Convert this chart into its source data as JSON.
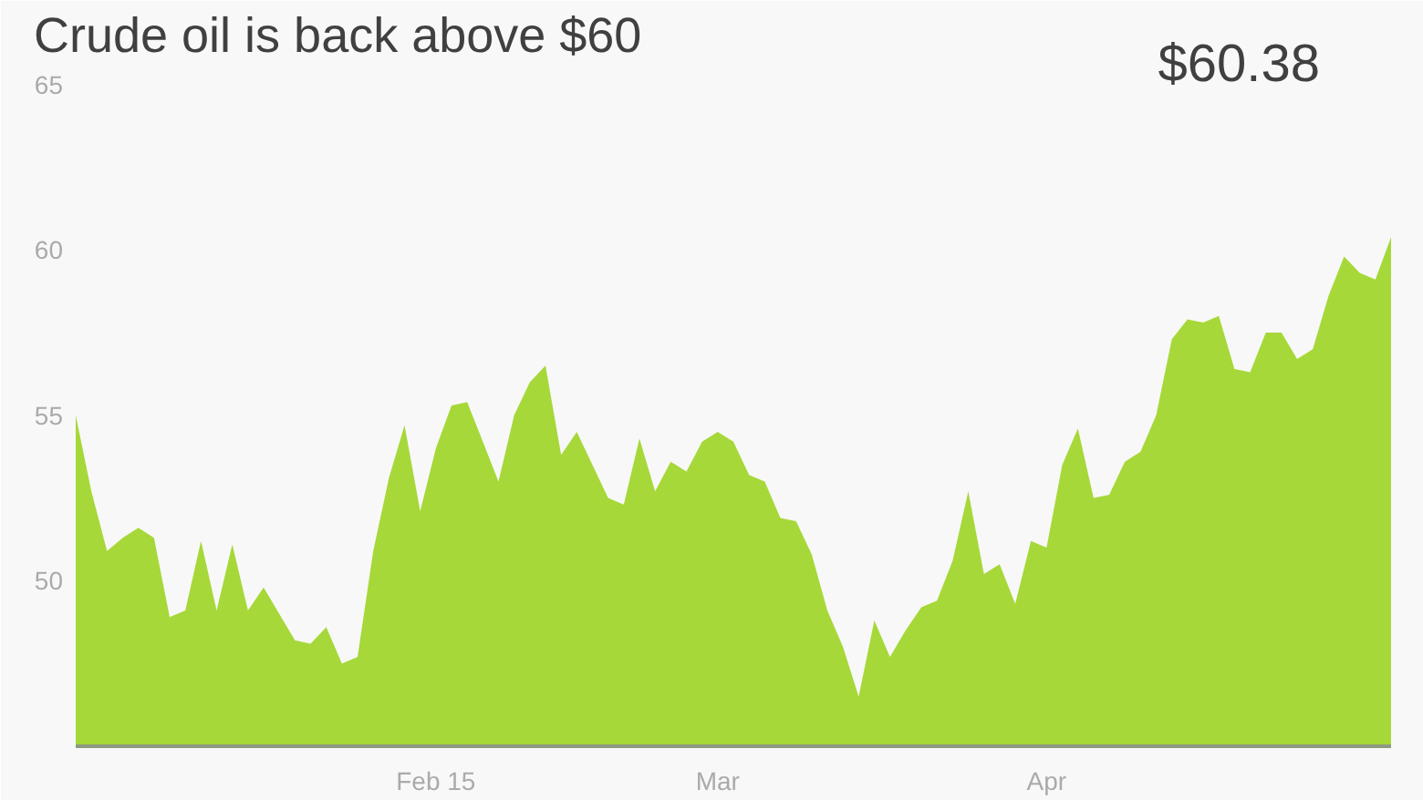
{
  "chart_data": {
    "type": "area",
    "title": "Crude oil is back above $60",
    "annotations": [
      "$60.38"
    ],
    "categories": [
      null,
      null,
      null,
      null,
      null,
      null,
      null,
      null,
      null,
      null,
      null,
      null,
      null,
      null,
      null,
      null,
      null,
      null,
      null,
      null,
      null,
      null,
      null,
      "Feb 15",
      null,
      null,
      null,
      null,
      null,
      null,
      null,
      null,
      null,
      null,
      null,
      null,
      null,
      null,
      null,
      null,
      null,
      "Mar",
      null,
      null,
      null,
      null,
      null,
      null,
      null,
      null,
      null,
      null,
      null,
      null,
      null,
      null,
      null,
      null,
      null,
      null,
      null,
      null,
      "Apr",
      null,
      null,
      null,
      null,
      null,
      null,
      null,
      null,
      null,
      null,
      null,
      null,
      null,
      null,
      null,
      null,
      null,
      null,
      null,
      null,
      null,
      null
    ],
    "series": [
      {
        "color": "#a6d839",
        "values": [
          55.0,
          52.7,
          50.9,
          51.3,
          51.6,
          51.3,
          48.9,
          49.1,
          51.2,
          49.1,
          51.1,
          49.1,
          49.8,
          49.0,
          48.2,
          48.1,
          48.6,
          47.5,
          47.7,
          50.9,
          53.1,
          54.7,
          52.1,
          54.0,
          55.3,
          55.4,
          54.2,
          53.0,
          55.0,
          56.0,
          56.5,
          53.8,
          54.5,
          53.5,
          52.5,
          52.3,
          54.3,
          52.7,
          53.6,
          53.3,
          54.2,
          54.5,
          54.2,
          53.2,
          53.0,
          51.9,
          51.8,
          50.8,
          49.1,
          48.0,
          46.5,
          48.8,
          47.7,
          48.5,
          49.2,
          49.4,
          50.6,
          52.7,
          50.2,
          50.5,
          49.3,
          51.2,
          51.0,
          53.5,
          54.6,
          52.5,
          52.6,
          53.6,
          53.9,
          55.0,
          57.3,
          57.9,
          57.8,
          58.0,
          56.4,
          56.3,
          57.5,
          57.5,
          56.7,
          57.0,
          58.6,
          59.8,
          59.3,
          59.1,
          60.38
        ]
      }
    ],
    "ylim": [
      45,
      65
    ],
    "yticks": [
      50,
      55,
      60,
      65
    ],
    "grid": false
  }
}
